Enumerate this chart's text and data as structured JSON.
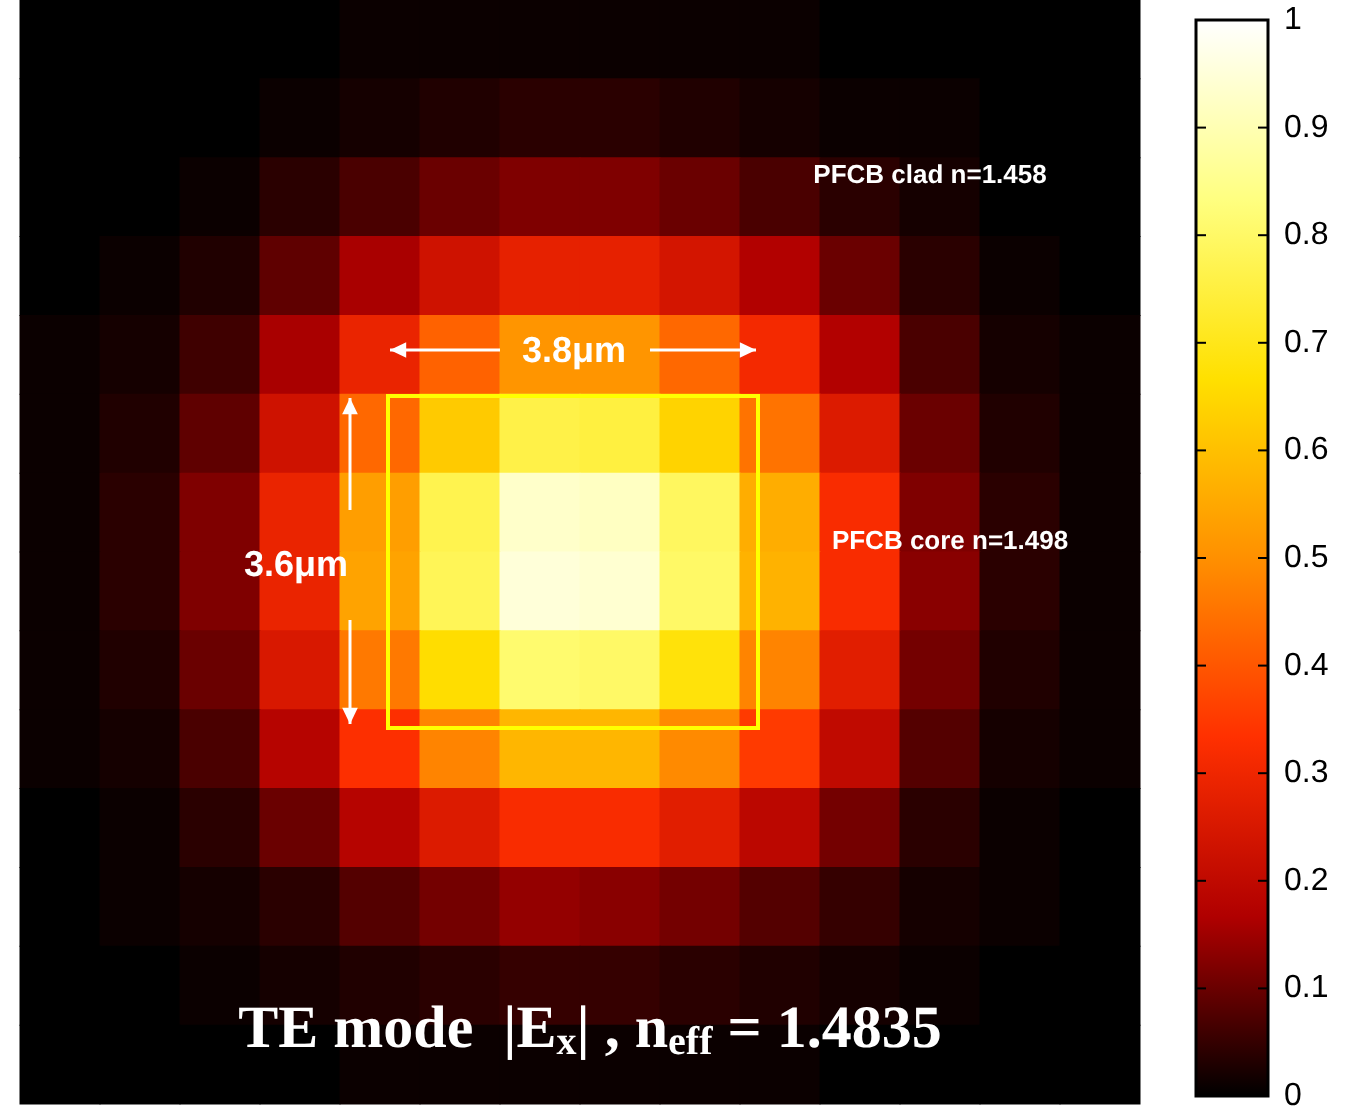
{
  "chart_data": {
    "type": "heatmap",
    "title": "TE mode  |E$_{x}$| , n$_{eff}$ = 1.4835",
    "annotations": [
      "PFCB clad n=1.458",
      "3.8μm",
      "3.6μm",
      "PFCB core n=1.498"
    ],
    "categories": [
      null,
      null,
      null,
      null,
      null,
      null,
      null,
      null,
      null,
      null,
      null,
      null,
      null,
      null
    ],
    "y_categories": [
      null,
      null,
      null,
      null,
      null,
      null,
      null,
      null,
      null,
      null,
      null,
      null,
      null,
      null
    ],
    "cells": [
      [
        0,
        0,
        0,
        0,
        0.01,
        0.01,
        0.01,
        0.01,
        0.01,
        0.01,
        0,
        0,
        0,
        0
      ],
      [
        0,
        0,
        0,
        0.01,
        0.02,
        0.03,
        0.04,
        0.04,
        0.03,
        0.02,
        0.01,
        0.01,
        0,
        0
      ],
      [
        0,
        0,
        0.01,
        0.04,
        0.07,
        0.1,
        0.12,
        0.12,
        0.1,
        0.07,
        0.04,
        0.02,
        0,
        0
      ],
      [
        0,
        0.01,
        0.03,
        0.09,
        0.16,
        0.23,
        0.28,
        0.28,
        0.24,
        0.17,
        0.1,
        0.04,
        0.01,
        0
      ],
      [
        0.01,
        0.02,
        0.06,
        0.16,
        0.29,
        0.42,
        0.51,
        0.51,
        0.43,
        0.31,
        0.17,
        0.07,
        0.02,
        0.01
      ],
      [
        0.01,
        0.03,
        0.09,
        0.23,
        0.43,
        0.62,
        0.76,
        0.75,
        0.64,
        0.45,
        0.26,
        0.1,
        0.03,
        0.01
      ],
      [
        0.01,
        0.04,
        0.12,
        0.29,
        0.53,
        0.77,
        0.93,
        0.92,
        0.79,
        0.56,
        0.32,
        0.12,
        0.04,
        0.01
      ],
      [
        0.01,
        0.04,
        0.12,
        0.29,
        0.54,
        0.78,
        0.95,
        0.94,
        0.8,
        0.57,
        0.32,
        0.13,
        0.04,
        0.01
      ],
      [
        0.01,
        0.03,
        0.1,
        0.25,
        0.46,
        0.66,
        0.81,
        0.8,
        0.68,
        0.48,
        0.27,
        0.11,
        0.03,
        0.01
      ],
      [
        0.01,
        0.02,
        0.07,
        0.18,
        0.33,
        0.48,
        0.58,
        0.58,
        0.49,
        0.35,
        0.2,
        0.08,
        0.02,
        0.01
      ],
      [
        0,
        0.01,
        0.04,
        0.1,
        0.18,
        0.26,
        0.32,
        0.32,
        0.27,
        0.19,
        0.11,
        0.04,
        0.01,
        0
      ],
      [
        0,
        0.01,
        0.02,
        0.04,
        0.08,
        0.11,
        0.14,
        0.13,
        0.11,
        0.08,
        0.05,
        0.02,
        0.01,
        0
      ],
      [
        0,
        0,
        0.01,
        0.02,
        0.03,
        0.04,
        0.05,
        0.05,
        0.04,
        0.03,
        0.02,
        0.01,
        0,
        0
      ],
      [
        0,
        0,
        0,
        0,
        0.01,
        0.01,
        0.01,
        0.01,
        0.01,
        0.01,
        0,
        0,
        0,
        0
      ]
    ],
    "clim": [
      0,
      1
    ],
    "cticks": [
      0,
      0.1,
      0.2,
      0.3,
      0.4,
      0.5,
      0.6,
      0.7,
      0.8,
      0.9,
      1
    ]
  }
}
